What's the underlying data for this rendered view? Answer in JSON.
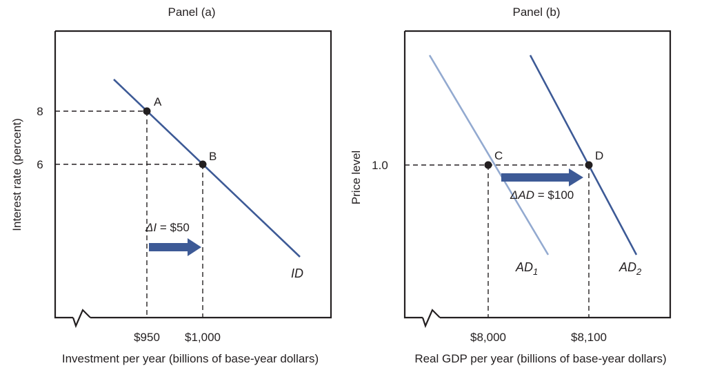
{
  "colors": {
    "line_dark": "#3d5a96",
    "line_light": "#93aad0",
    "arrow": "#3d5a96",
    "frame": "#231f20",
    "dash": "#231f20"
  },
  "chart_data": [
    {
      "type": "line",
      "title": "Panel (a)",
      "xlabel": "Investment per year (billions of base-year dollars)",
      "ylabel": "Interest rate (percent)",
      "x_ticks": [
        "$950",
        "$1,000"
      ],
      "y_ticks": [
        "8",
        "6"
      ],
      "axis_break": "x-axis near origin",
      "grid": false,
      "series": [
        {
          "name": "ID",
          "color": "#3d5a96",
          "points": [
            [
              950,
              8
            ],
            [
              1000,
              6
            ]
          ]
        }
      ],
      "points": [
        {
          "label": "A",
          "x": 950,
          "y": 8
        },
        {
          "label": "B",
          "x": 1000,
          "y": 6
        }
      ],
      "annotations": [
        {
          "text_prefix": "ΔI",
          "text_suffix": " = $50",
          "from_x": 950,
          "to_x": 1000
        }
      ]
    },
    {
      "type": "line",
      "title": "Panel (b)",
      "xlabel": "Real GDP per year (billions of base-year dollars)",
      "ylabel": "Price level",
      "x_ticks": [
        "$8,000",
        "$8,100"
      ],
      "y_ticks": [
        "1.0"
      ],
      "axis_break": "x-axis near origin",
      "grid": false,
      "series": [
        {
          "name": "AD1",
          "base": "AD",
          "sub": "1",
          "color": "#93aad0",
          "points": [
            [
              8000,
              1.0
            ]
          ]
        },
        {
          "name": "AD2",
          "base": "AD",
          "sub": "2",
          "color": "#3d5a96",
          "points": [
            [
              8100,
              1.0
            ]
          ]
        }
      ],
      "points": [
        {
          "label": "C",
          "x": 8000,
          "y": 1.0
        },
        {
          "label": "D",
          "x": 8100,
          "y": 1.0
        }
      ],
      "annotations": [
        {
          "text_prefix": "ΔAD",
          "text_suffix": " = $100",
          "from_x": 8000,
          "to_x": 8100
        }
      ]
    }
  ]
}
